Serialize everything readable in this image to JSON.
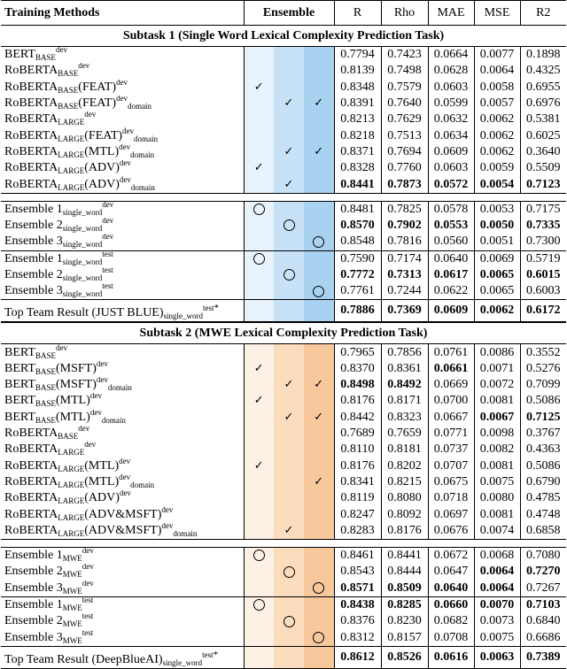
{
  "header": {
    "methods": "Training Methods",
    "ensemble": "Ensemble",
    "r": "R",
    "rho": "Rho",
    "mae": "MAE",
    "mse": "MSE",
    "r2": "R2"
  },
  "subtask1": {
    "title": "Subtask 1 (Single Word Lexical Complexity Prediction Task)"
  },
  "subtask2": {
    "title": "Subtask 2 (MWE Lexical Complexity Prediction Task)"
  },
  "check": "✓",
  "tables": {
    "s1": [
      {
        "m": "BERT",
        "s": "BASE",
        "x": "",
        "p": "dev",
        "d": "",
        "e": [
          "",
          "",
          ""
        ],
        "v": [
          "0.7794",
          "0.7423",
          "0.0664",
          "0.0077",
          "0.1898"
        ],
        "b": []
      },
      {
        "m": "RoBERTA",
        "s": "BASE",
        "x": "",
        "p": "dev",
        "d": "",
        "e": [
          "",
          "",
          ""
        ],
        "v": [
          "0.8139",
          "0.7498",
          "0.0628",
          "0.0064",
          "0.4325"
        ],
        "b": []
      },
      {
        "m": "RoBERTA",
        "s": "BASE",
        "x": "(FEAT)",
        "p": "dev",
        "d": "",
        "e": [
          "c",
          "",
          ""
        ],
        "v": [
          "0.8348",
          "0.7579",
          "0.0603",
          "0.0058",
          "0.6955"
        ],
        "b": []
      },
      {
        "m": "RoBERTA",
        "s": "BASE",
        "x": "(FEAT)",
        "p": "dev",
        "d": "domain",
        "e": [
          "",
          "c",
          "c"
        ],
        "v": [
          "0.8391",
          "0.7640",
          "0.0599",
          "0.0057",
          "0.6976"
        ],
        "b": []
      },
      {
        "m": "RoBERTA",
        "s": "LARGE",
        "x": "",
        "p": "dev",
        "d": "",
        "e": [
          "",
          "",
          ""
        ],
        "v": [
          "0.8213",
          "0.7629",
          "0.0632",
          "0.0062",
          "0.5381"
        ],
        "b": []
      },
      {
        "m": "RoBERTA",
        "s": "LARGE",
        "x": "(FEAT)",
        "p": "dev",
        "d": "domain",
        "e": [
          "",
          "",
          ""
        ],
        "v": [
          "0.8218",
          "0.7513",
          "0.0634",
          "0.0062",
          "0.6025"
        ],
        "b": []
      },
      {
        "m": "RoBERTA",
        "s": "LARGE",
        "x": "(MTL)",
        "p": "dev",
        "d": "domain",
        "e": [
          "",
          "c",
          "c"
        ],
        "v": [
          "0.8371",
          "0.7694",
          "0.0609",
          "0.0062",
          "0.3640"
        ],
        "b": []
      },
      {
        "m": "RoBERTA",
        "s": "LARGE",
        "x": "(ADV)",
        "p": "dev",
        "d": "",
        "e": [
          "c",
          "",
          ""
        ],
        "v": [
          "0.8328",
          "0.7760",
          "0.0603",
          "0.0059",
          "0.5509"
        ],
        "b": []
      },
      {
        "m": "RoBERTA",
        "s": "LARGE",
        "x": "(ADV)",
        "p": "dev",
        "d": "domain",
        "e": [
          "",
          "c",
          ""
        ],
        "v": [
          "0.8441",
          "0.7873",
          "0.0572",
          "0.0054",
          "0.7123"
        ],
        "b": [
          0,
          1,
          2,
          3,
          4
        ]
      }
    ],
    "s1e": [
      {
        "m": "Ensemble 1",
        "s": "single_word",
        "x": "",
        "p": "dev",
        "d": "",
        "e": [
          "o",
          "",
          ""
        ],
        "v": [
          "0.8481",
          "0.7825",
          "0.0578",
          "0.0053",
          "0.7175"
        ],
        "b": []
      },
      {
        "m": "Ensemble 2",
        "s": "single_word",
        "x": "",
        "p": "dev",
        "d": "",
        "e": [
          "",
          "o",
          ""
        ],
        "v": [
          "0.8570",
          "0.7902",
          "0.0553",
          "0.0050",
          "0.7335"
        ],
        "b": [
          0,
          1,
          2,
          3,
          4
        ]
      },
      {
        "m": "Ensemble 3",
        "s": "single_word",
        "x": "",
        "p": "dev",
        "d": "",
        "e": [
          "",
          "",
          "o"
        ],
        "v": [
          "0.8548",
          "0.7816",
          "0.0560",
          "0.0051",
          "0.7300"
        ],
        "b": []
      },
      {
        "m": "Ensemble 1",
        "s": "single_word",
        "x": "",
        "p": "test",
        "d": "",
        "e": [
          "o",
          "",
          ""
        ],
        "v": [
          "0.7590",
          "0.7174",
          "0.0640",
          "0.0069",
          "0.5719"
        ],
        "b": []
      },
      {
        "m": "Ensemble 2",
        "s": "single_word",
        "x": "",
        "p": "test",
        "d": "",
        "e": [
          "",
          "o",
          ""
        ],
        "v": [
          "0.7772",
          "0.7313",
          "0.0617",
          "0.0065",
          "0.6015"
        ],
        "b": [
          0,
          1,
          2,
          3,
          4
        ]
      },
      {
        "m": "Ensemble 3",
        "s": "single_word",
        "x": "",
        "p": "test",
        "d": "",
        "e": [
          "",
          "",
          "o"
        ],
        "v": [
          "0.7761",
          "0.7244",
          "0.0622",
          "0.0065",
          "0.6003"
        ],
        "b": []
      }
    ],
    "s1t": {
      "m": "Top Team Result (JUST BLUE)",
      "s": "single_word",
      "x": "",
      "p": "test",
      "d": "",
      "e": [
        "",
        "",
        ""
      ],
      "v": [
        "0.7886",
        "0.7369",
        "0.0609",
        "0.0062",
        "0.6172"
      ],
      "b": [
        0,
        1,
        2,
        3,
        4
      ]
    },
    "s2": [
      {
        "m": "BERT",
        "s": "BASE",
        "x": "",
        "p": "dev",
        "d": "",
        "e": [
          "",
          "",
          ""
        ],
        "v": [
          "0.7965",
          "0.7856",
          "0.0761",
          "0.0086",
          "0.3552"
        ],
        "b": []
      },
      {
        "m": "BERT",
        "s": "BASE",
        "x": "(MSFT)",
        "p": "dev",
        "d": "",
        "e": [
          "c",
          "",
          ""
        ],
        "v": [
          "0.8370",
          "0.8361",
          "0.0661",
          "0.0071",
          "0.5276"
        ],
        "b": [
          2
        ]
      },
      {
        "m": "BERT",
        "s": "BASE",
        "x": "(MSFT)",
        "p": "dev",
        "d": "domain",
        "e": [
          "",
          "c",
          "c"
        ],
        "v": [
          "0.8498",
          "0.8492",
          "0.0669",
          "0.0072",
          "0.7099"
        ],
        "b": [
          0,
          1
        ]
      },
      {
        "m": "BERT",
        "s": "BASE",
        "x": "(MTL)",
        "p": "dev",
        "d": "",
        "e": [
          "c",
          "",
          ""
        ],
        "v": [
          "0.8176",
          "0.8171",
          "0.0700",
          "0.0081",
          "0.5086"
        ],
        "b": []
      },
      {
        "m": "BERT",
        "s": "BASE",
        "x": "(MTL)",
        "p": "dev",
        "d": "domain",
        "e": [
          "",
          "c",
          "c"
        ],
        "v": [
          "0.8442",
          "0.8323",
          "0.0667",
          "0.0067",
          "0.7125"
        ],
        "b": [
          3,
          4
        ]
      },
      {
        "m": "RoBERTA",
        "s": "BASE",
        "x": "",
        "p": "dev",
        "d": "",
        "e": [
          "",
          "",
          ""
        ],
        "v": [
          "0.7689",
          "0.7659",
          "0.0771",
          "0.0098",
          "0.3767"
        ],
        "b": []
      },
      {
        "m": "RoBERTA",
        "s": "LARGE",
        "x": "",
        "p": "dev",
        "d": "",
        "e": [
          "",
          "",
          ""
        ],
        "v": [
          "0.8110",
          "0.8181",
          "0.0737",
          "0.0082",
          "0.4363"
        ],
        "b": []
      },
      {
        "m": "RoBERTA",
        "s": "LARGE",
        "x": "(MTL)",
        "p": "dev",
        "d": "",
        "e": [
          "c",
          "",
          ""
        ],
        "v": [
          "0.8176",
          "0.8202",
          "0.0707",
          "0.0081",
          "0.5086"
        ],
        "b": []
      },
      {
        "m": "RoBERTA",
        "s": "LARGE",
        "x": "(MTL)",
        "p": "dev",
        "d": "domain",
        "e": [
          "",
          "",
          "c"
        ],
        "v": [
          "0.8341",
          "0.8215",
          "0.0675",
          "0.0075",
          "0.6790"
        ],
        "b": []
      },
      {
        "m": "RoBERTA",
        "s": "LARGE",
        "x": "(ADV)",
        "p": "dev",
        "d": "",
        "e": [
          "",
          "",
          ""
        ],
        "v": [
          "0.8119",
          "0.8080",
          "0.0718",
          "0.0080",
          "0.4785"
        ],
        "b": []
      },
      {
        "m": "RoBERTA",
        "s": "LARGE",
        "x": "(ADV&MSFT)",
        "p": "dev",
        "d": "",
        "e": [
          "",
          "",
          ""
        ],
        "v": [
          "0.8247",
          "0.8092",
          "0.0697",
          "0.0081",
          "0.4748"
        ],
        "b": []
      },
      {
        "m": "RoBERTA",
        "s": "LARGE",
        "x": "(ADV&MSFT)",
        "p": "dev",
        "d": "domain",
        "e": [
          "",
          "c",
          ""
        ],
        "v": [
          "0.8283",
          "0.8176",
          "0.0676",
          "0.0074",
          "0.6858"
        ],
        "b": []
      }
    ],
    "s2e": [
      {
        "m": "Ensemble 1",
        "s": "MWE",
        "x": "",
        "p": "dev",
        "d": "",
        "e": [
          "o",
          "",
          ""
        ],
        "v": [
          "0.8461",
          "0.8441",
          "0.0672",
          "0.0068",
          "0.7080"
        ],
        "b": []
      },
      {
        "m": "Ensemble 2",
        "s": "MWE",
        "x": "",
        "p": "dev",
        "d": "",
        "e": [
          "",
          "o",
          ""
        ],
        "v": [
          "0.8543",
          "0.8444",
          "0.0647",
          "0.0064",
          "0.7270"
        ],
        "b": [
          3,
          4
        ]
      },
      {
        "m": "Ensemble 3",
        "s": "MWE",
        "x": "",
        "p": "dev",
        "d": "",
        "e": [
          "",
          "",
          "o"
        ],
        "v": [
          "0.8571",
          "0.8509",
          "0.0640",
          "0.0064",
          "0.7267"
        ],
        "b": [
          0,
          1,
          2,
          3
        ]
      },
      {
        "m": "Ensemble 1",
        "s": "MWE",
        "x": "",
        "p": "test",
        "d": "",
        "e": [
          "o",
          "",
          ""
        ],
        "v": [
          "0.8438",
          "0.8285",
          "0.0660",
          "0.0070",
          "0.7103"
        ],
        "b": [
          0,
          1,
          2,
          3,
          4
        ]
      },
      {
        "m": "Ensemble 2",
        "s": "MWE",
        "x": "",
        "p": "test",
        "d": "",
        "e": [
          "",
          "o",
          ""
        ],
        "v": [
          "0.8376",
          "0.8230",
          "0.0682",
          "0.0073",
          "0.6840"
        ],
        "b": []
      },
      {
        "m": "Ensemble 3",
        "s": "MWE",
        "x": "",
        "p": "test",
        "d": "",
        "e": [
          "",
          "",
          "o"
        ],
        "v": [
          "0.8312",
          "0.8157",
          "0.0708",
          "0.0075",
          "0.6686"
        ],
        "b": []
      }
    ],
    "s2t": {
      "m": "Top Team Result (DeepBlueAI)",
      "s": "single_word",
      "x": "",
      "p": "test",
      "d": "",
      "e": [
        "",
        "",
        ""
      ],
      "v": [
        "0.8612",
        "0.8526",
        "0.0616",
        "0.0063",
        "0.7389"
      ],
      "b": [
        0,
        1,
        2,
        3,
        4
      ]
    }
  },
  "star": "*"
}
